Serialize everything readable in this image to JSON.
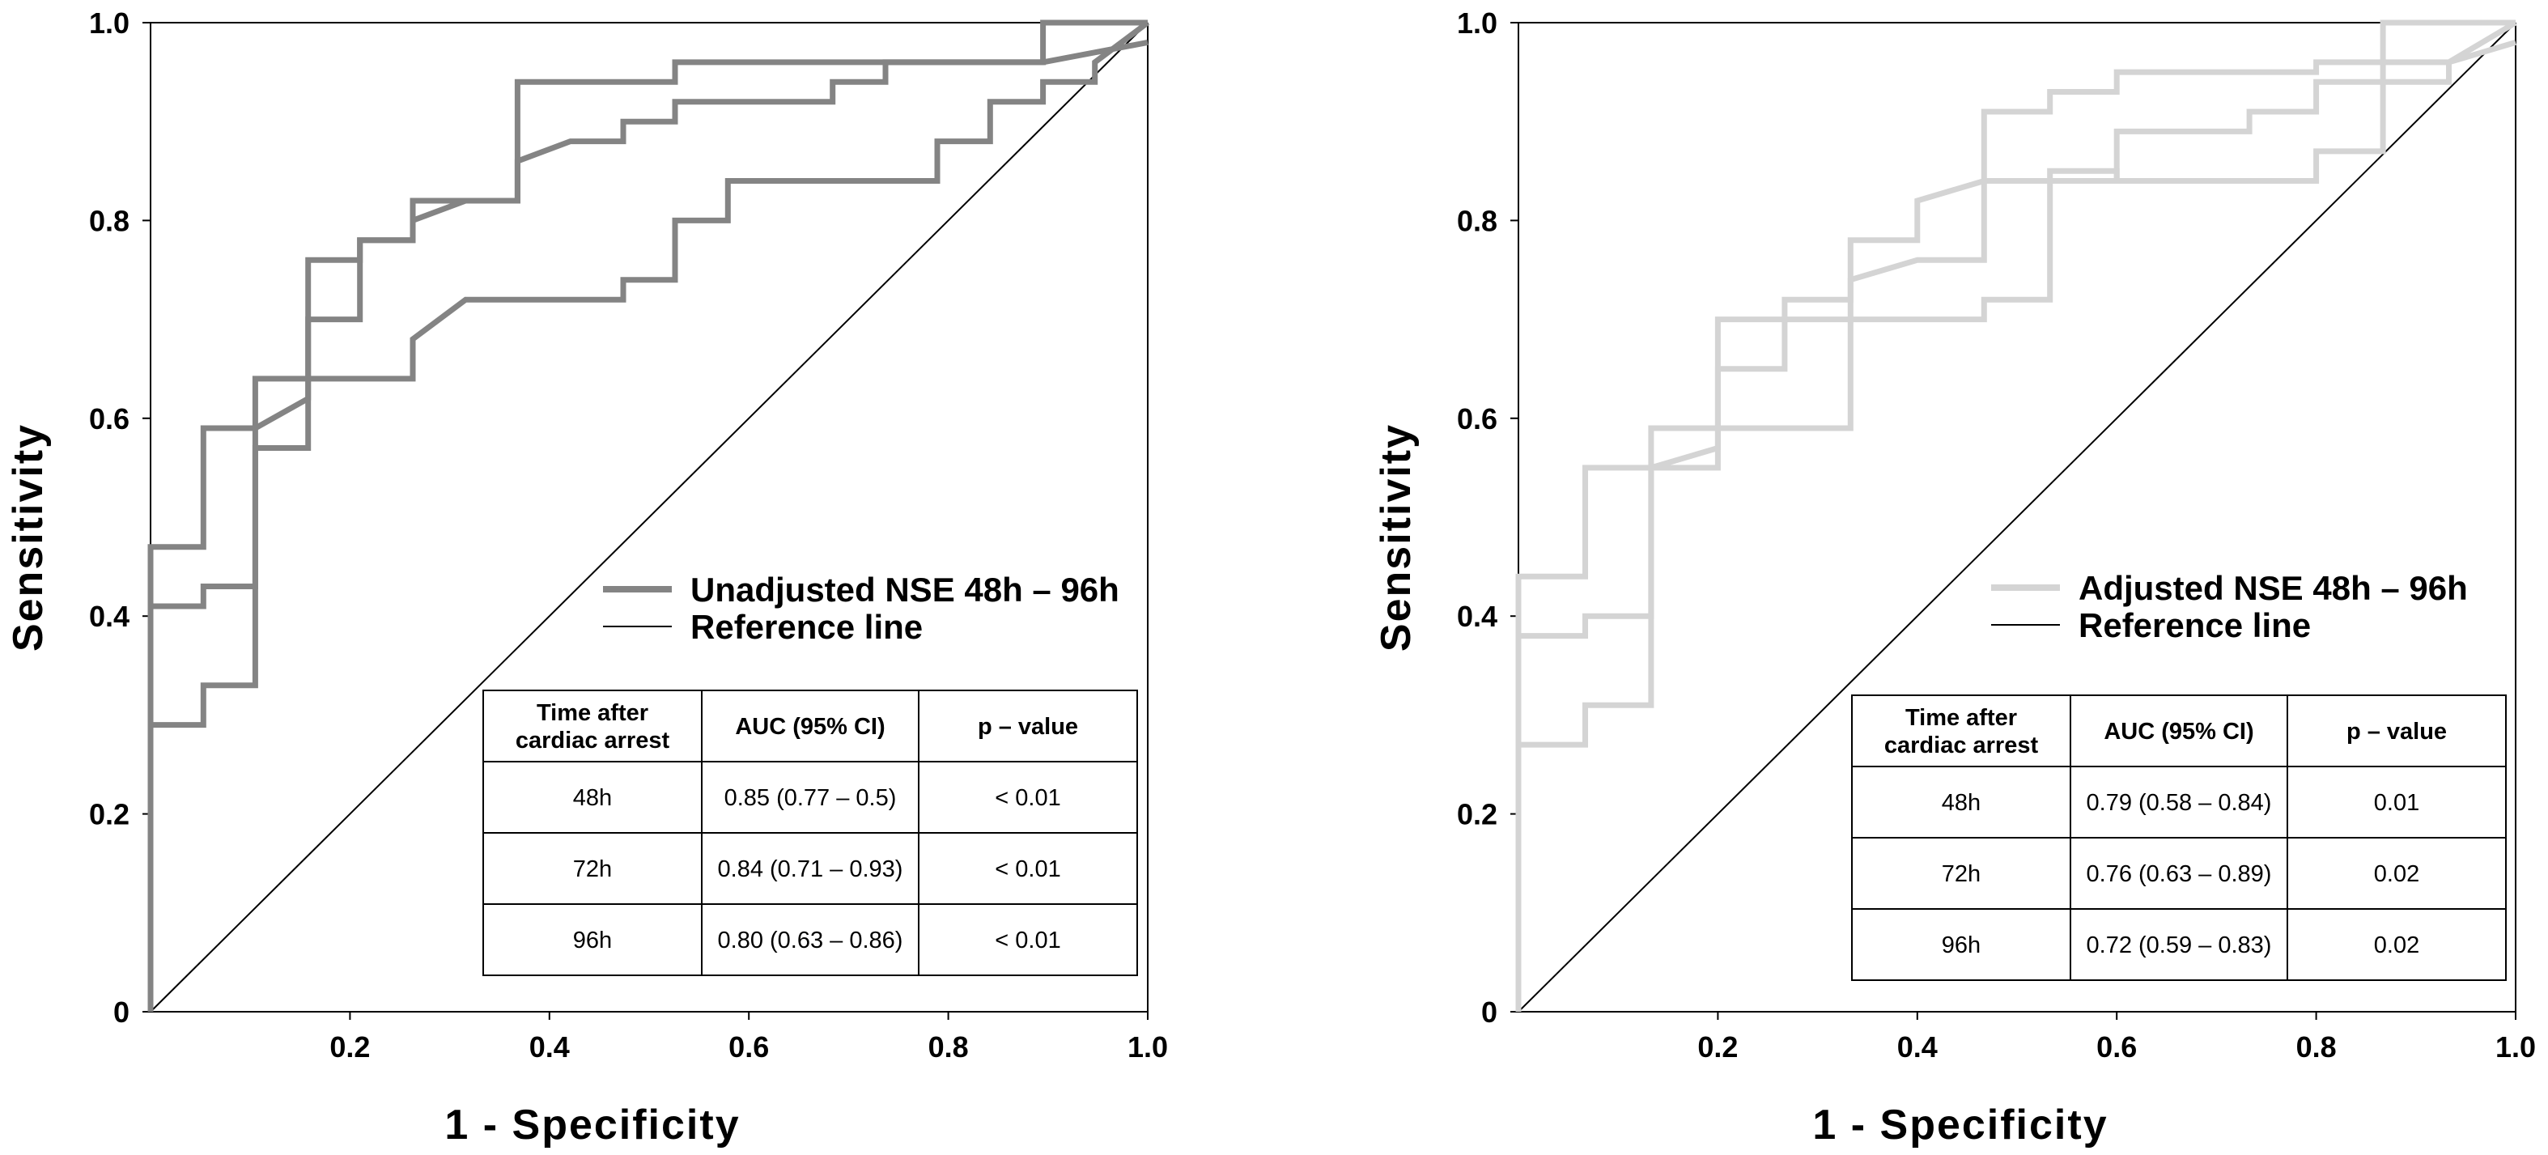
{
  "chart_data": [
    {
      "type": "line",
      "title": "",
      "xlabel": "1 - Specificity",
      "ylabel": "Sensitivity",
      "xlim": [
        0,
        1
      ],
      "ylim": [
        0,
        1
      ],
      "x_ticks": [
        "0.2",
        "0.4",
        "0.6",
        "0.8",
        "1.0"
      ],
      "y_ticks": [
        "0",
        "0.2",
        "0.4",
        "0.6",
        "0.8",
        "1.0"
      ],
      "legend": [
        "Unadjusted NSE 48h – 96h",
        "Reference line"
      ],
      "curve_color": "#848484",
      "series": [
        {
          "name": "48h",
          "points": [
            [
              0,
              0
            ],
            [
              0,
              0.47
            ],
            [
              0.053,
              0.47
            ],
            [
              0.053,
              0.59
            ],
            [
              0.105,
              0.59
            ],
            [
              0.158,
              0.62
            ],
            [
              0.158,
              0.76
            ],
            [
              0.21,
              0.76
            ],
            [
              0.21,
              0.78
            ],
            [
              0.263,
              0.78
            ],
            [
              0.263,
              0.82
            ],
            [
              0.368,
              0.82
            ],
            [
              0.368,
              0.94
            ],
            [
              0.526,
              0.94
            ],
            [
              0.526,
              0.96
            ],
            [
              0.895,
              0.96
            ],
            [
              0.895,
              1.0
            ],
            [
              1.0,
              1.0
            ]
          ]
        },
        {
          "name": "72h",
          "points": [
            [
              0,
              0
            ],
            [
              0,
              0.41
            ],
            [
              0.053,
              0.41
            ],
            [
              0.053,
              0.43
            ],
            [
              0.105,
              0.43
            ],
            [
              0.105,
              0.57
            ],
            [
              0.158,
              0.57
            ],
            [
              0.158,
              0.7
            ],
            [
              0.21,
              0.7
            ],
            [
              0.21,
              0.78
            ],
            [
              0.263,
              0.78
            ],
            [
              0.263,
              0.8
            ],
            [
              0.316,
              0.82
            ],
            [
              0.368,
              0.82
            ],
            [
              0.368,
              0.86
            ],
            [
              0.421,
              0.88
            ],
            [
              0.474,
              0.88
            ],
            [
              0.474,
              0.9
            ],
            [
              0.526,
              0.9
            ],
            [
              0.526,
              0.92
            ],
            [
              0.684,
              0.92
            ],
            [
              0.684,
              0.94
            ],
            [
              0.737,
              0.94
            ],
            [
              0.737,
              0.96
            ],
            [
              0.895,
              0.96
            ],
            [
              0.895,
              0.96
            ],
            [
              1.0,
              0.98
            ]
          ]
        },
        {
          "name": "96h",
          "points": [
            [
              0,
              0
            ],
            [
              0,
              0.29
            ],
            [
              0.053,
              0.29
            ],
            [
              0.053,
              0.33
            ],
            [
              0.105,
              0.33
            ],
            [
              0.105,
              0.64
            ],
            [
              0.263,
              0.64
            ],
            [
              0.263,
              0.68
            ],
            [
              0.316,
              0.72
            ],
            [
              0.474,
              0.72
            ],
            [
              0.474,
              0.74
            ],
            [
              0.526,
              0.74
            ],
            [
              0.526,
              0.8
            ],
            [
              0.579,
              0.8
            ],
            [
              0.579,
              0.84
            ],
            [
              0.789,
              0.84
            ],
            [
              0.789,
              0.88
            ],
            [
              0.842,
              0.88
            ],
            [
              0.842,
              0.92
            ],
            [
              0.895,
              0.92
            ],
            [
              0.895,
              0.94
            ],
            [
              0.947,
              0.94
            ],
            [
              0.947,
              0.96
            ],
            [
              1.0,
              1.0
            ]
          ]
        }
      ],
      "table": {
        "headers": [
          "Time after\ncardiac arrest",
          "AUC (95% CI)",
          "p – value"
        ],
        "rows": [
          [
            "48h",
            "0.85 (0.77 – 0.5)",
            "< 0.01"
          ],
          [
            "72h",
            "0.84 (0.71 – 0.93)",
            "< 0.01"
          ],
          [
            "96h",
            "0.80 (0.63 – 0.86)",
            "< 0.01"
          ]
        ]
      }
    },
    {
      "type": "line",
      "title": "",
      "xlabel": "1 - Specificity",
      "ylabel": "Sensitivity",
      "xlim": [
        0,
        1
      ],
      "ylim": [
        0,
        1
      ],
      "x_ticks": [
        "0.2",
        "0.4",
        "0.6",
        "0.8",
        "1.0"
      ],
      "y_ticks": [
        "0",
        "0.2",
        "0.4",
        "0.6",
        "0.8",
        "1.0"
      ],
      "legend": [
        "Adjusted NSE 48h – 96h",
        "Reference line"
      ],
      "curve_color": "#d4d4d4",
      "series": [
        {
          "name": "48h",
          "points": [
            [
              0,
              0
            ],
            [
              0,
              0.44
            ],
            [
              0.067,
              0.44
            ],
            [
              0.067,
              0.55
            ],
            [
              0.133,
              0.55
            ],
            [
              0.2,
              0.57
            ],
            [
              0.2,
              0.7
            ],
            [
              0.333,
              0.7
            ],
            [
              0.333,
              0.74
            ],
            [
              0.4,
              0.76
            ],
            [
              0.467,
              0.76
            ],
            [
              0.467,
              0.91
            ],
            [
              0.533,
              0.91
            ],
            [
              0.533,
              0.93
            ],
            [
              0.6,
              0.93
            ],
            [
              0.6,
              0.95
            ],
            [
              0.8,
              0.95
            ],
            [
              0.8,
              0.96
            ],
            [
              0.867,
              0.96
            ],
            [
              0.867,
              1.0
            ],
            [
              1.0,
              1.0
            ]
          ]
        },
        {
          "name": "72h",
          "points": [
            [
              0,
              0
            ],
            [
              0,
              0.38
            ],
            [
              0.067,
              0.38
            ],
            [
              0.067,
              0.4
            ],
            [
              0.133,
              0.4
            ],
            [
              0.133,
              0.55
            ],
            [
              0.2,
              0.55
            ],
            [
              0.2,
              0.65
            ],
            [
              0.267,
              0.65
            ],
            [
              0.267,
              0.72
            ],
            [
              0.333,
              0.72
            ],
            [
              0.333,
              0.78
            ],
            [
              0.4,
              0.78
            ],
            [
              0.4,
              0.82
            ],
            [
              0.467,
              0.84
            ],
            [
              0.6,
              0.84
            ],
            [
              0.6,
              0.89
            ],
            [
              0.733,
              0.89
            ],
            [
              0.733,
              0.91
            ],
            [
              0.8,
              0.91
            ],
            [
              0.8,
              0.94
            ],
            [
              0.933,
              0.94
            ],
            [
              0.933,
              0.96
            ],
            [
              1.0,
              0.98
            ]
          ]
        },
        {
          "name": "96h",
          "points": [
            [
              0,
              0
            ],
            [
              0,
              0.27
            ],
            [
              0.067,
              0.27
            ],
            [
              0.067,
              0.31
            ],
            [
              0.133,
              0.31
            ],
            [
              0.133,
              0.59
            ],
            [
              0.333,
              0.59
            ],
            [
              0.333,
              0.7
            ],
            [
              0.467,
              0.7
            ],
            [
              0.467,
              0.72
            ],
            [
              0.533,
              0.72
            ],
            [
              0.533,
              0.85
            ],
            [
              0.6,
              0.85
            ],
            [
              0.6,
              0.84
            ],
            [
              0.8,
              0.84
            ],
            [
              0.8,
              0.87
            ],
            [
              0.867,
              0.87
            ],
            [
              0.867,
              0.96
            ],
            [
              0.933,
              0.96
            ],
            [
              1.0,
              1.0
            ]
          ]
        }
      ],
      "table": {
        "headers": [
          "Time after\ncardiac arrest",
          "AUC (95% CI)",
          "p – value"
        ],
        "rows": [
          [
            "48h",
            "0.79 (0.58 – 0.84)",
            "0.01"
          ],
          [
            "72h",
            "0.76 (0.63 – 0.89)",
            "0.02"
          ],
          [
            "96h",
            "0.72 (0.59 – 0.83)",
            "0.02"
          ]
        ]
      }
    }
  ]
}
